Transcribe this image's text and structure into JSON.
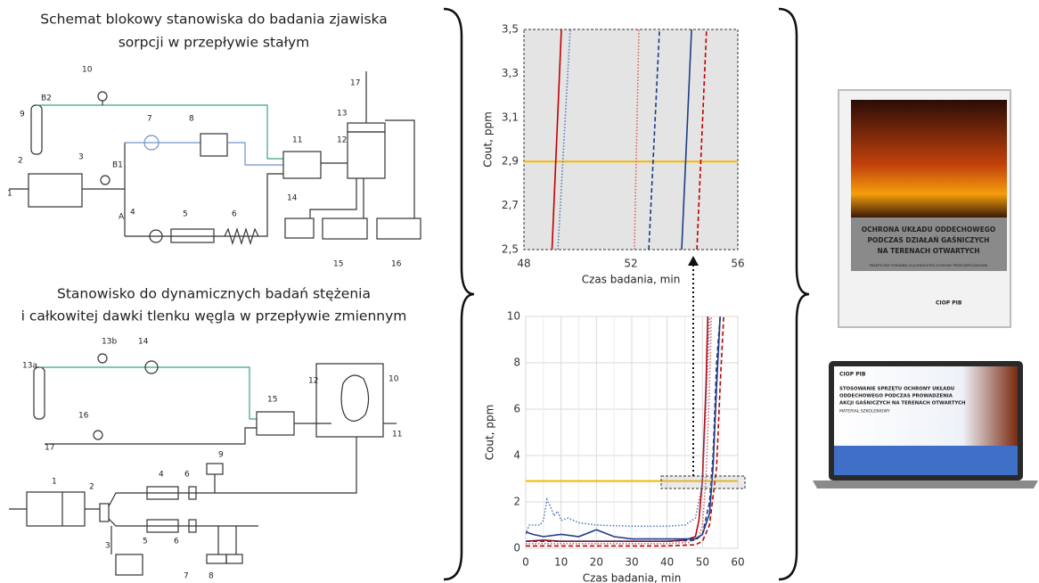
{
  "diagram1": {
    "title": [
      "Schemat blokowy stanowiska do badania zjawiska",
      "sorpcji w przepływie stałym"
    ],
    "labels": [
      "10",
      "9",
      "B2",
      "7",
      "8",
      "17",
      "13",
      "11",
      "12",
      "2",
      "3",
      "B1",
      "1",
      "A",
      "4",
      "5",
      "6",
      "14",
      "15",
      "16"
    ]
  },
  "diagram2": {
    "title": [
      "Stanowisko do dynamicznych badań stężenia",
      "i całkowitej dawki tlenku węgla w przepływie zmiennym"
    ],
    "labels": [
      "13b",
      "14",
      "13a",
      "12",
      "10",
      "15",
      "16",
      "17",
      "9",
      "1",
      "2",
      "4",
      "6",
      "11",
      "3",
      "5",
      "6",
      "7",
      "8"
    ]
  },
  "chart_data": [
    {
      "type": "line",
      "x_label": "Czas badania, min",
      "y_label": "Cout, ppm",
      "xlim": [
        48,
        56
      ],
      "xticks": [
        48,
        52,
        56
      ],
      "ylim": [
        2.5,
        3.5
      ],
      "yticks": [
        {
          "value": 2.5,
          "label": "2,5"
        },
        {
          "value": 2.7,
          "label": "2,7"
        },
        {
          "value": 2.9,
          "label": "2,9"
        },
        {
          "value": 3.1,
          "label": "3,1"
        },
        {
          "value": 3.3,
          "label": "3,3"
        },
        {
          "value": 3.5,
          "label": "3,5"
        }
      ],
      "grid": false,
      "background": "#e4e4e4",
      "reference_line": {
        "value": 2.9,
        "color": "#f5b800"
      },
      "series": [
        {
          "color": "#c00000",
          "dash": "solid",
          "x": [
            49.05,
            49.4
          ],
          "values": [
            2.5,
            3.5
          ]
        },
        {
          "color": "#5a7ab8",
          "dash": "dotted",
          "x": [
            49.27,
            49.73
          ],
          "values": [
            2.5,
            3.5
          ]
        },
        {
          "color": "#e06060",
          "dash": "dotted",
          "x": [
            52.13,
            52.3
          ],
          "values": [
            2.5,
            3.5
          ]
        },
        {
          "color": "#1f3c88",
          "dash": "dashed",
          "x": [
            52.67,
            53.07
          ],
          "values": [
            2.5,
            3.5
          ]
        },
        {
          "color": "#1f3c88",
          "dash": "solid",
          "x": [
            53.9,
            54.27
          ],
          "values": [
            2.5,
            3.5
          ]
        },
        {
          "color": "#c00000",
          "dash": "dashed",
          "x": [
            54.47,
            54.83
          ],
          "values": [
            2.5,
            3.5
          ]
        }
      ]
    },
    {
      "type": "line",
      "x_label": "Czas badania, min",
      "y_label": "Cout, ppm",
      "xlim": [
        0,
        60
      ],
      "xticks": [
        0,
        10,
        20,
        30,
        40,
        50,
        60
      ],
      "ylim": [
        0,
        10
      ],
      "yticks": [
        0,
        2,
        4,
        6,
        8,
        10
      ],
      "grid": true,
      "background": "#ffffff",
      "reference_line": {
        "value": 2.9,
        "color": "#f5b800"
      },
      "series": [
        {
          "color": "#c00000",
          "dash": "solid",
          "x": [
            0,
            5,
            10,
            20,
            30,
            40,
            45,
            48,
            49,
            50,
            51,
            51.5
          ],
          "values": [
            0.3,
            0.35,
            0.3,
            0.3,
            0.3,
            0.3,
            0.35,
            0.5,
            1.2,
            3,
            7,
            10
          ]
        },
        {
          "color": "#5a7ab8",
          "dash": "dotted",
          "x": [
            0,
            1,
            4,
            5,
            6,
            7,
            8,
            9,
            10,
            12,
            15,
            20,
            30,
            40,
            45,
            48,
            50,
            51,
            52
          ],
          "values": [
            0.6,
            1,
            1,
            1.2,
            2.1,
            1.8,
            1.4,
            1.6,
            1.2,
            1.3,
            1.1,
            1,
            0.95,
            0.95,
            1,
            1.3,
            2.8,
            6,
            10
          ]
        },
        {
          "color": "#e06060",
          "dash": "dotted",
          "x": [
            0,
            10,
            20,
            30,
            40,
            46,
            49,
            50,
            51,
            52,
            52.5
          ],
          "values": [
            0.2,
            0.2,
            0.2,
            0.2,
            0.2,
            0.25,
            0.5,
            1,
            3,
            7,
            10
          ]
        },
        {
          "color": "#1f3c88",
          "dash": "dashed",
          "x": [
            0,
            10,
            20,
            30,
            40,
            48,
            50,
            52,
            53,
            54,
            55
          ],
          "values": [
            0.3,
            0.3,
            0.3,
            0.3,
            0.3,
            0.35,
            0.6,
            2,
            4,
            8,
            10
          ]
        },
        {
          "color": "#1f3c88",
          "dash": "solid",
          "x": [
            0,
            2,
            5,
            10,
            15,
            20,
            25,
            30,
            35,
            40,
            45,
            48,
            50,
            52,
            53,
            54,
            55
          ],
          "values": [
            0.7,
            0.6,
            0.5,
            0.6,
            0.5,
            0.8,
            0.5,
            0.4,
            0.4,
            0.4,
            0.4,
            0.4,
            0.6,
            1.5,
            3.5,
            7,
            10
          ]
        },
        {
          "color": "#c00000",
          "dash": "dashed",
          "x": [
            0,
            10,
            20,
            30,
            40,
            48,
            50,
            52,
            54,
            55,
            56
          ],
          "values": [
            0.1,
            0.1,
            0.1,
            0.1,
            0.1,
            0.15,
            0.3,
            1,
            3.5,
            7,
            10
          ]
        }
      ]
    }
  ],
  "book": {
    "title": [
      "OCHRONA UKŁADU ODDECHOWEGO",
      "PODCZAS DZIAŁAŃ GAŚNICZYCH",
      "NA TERENACH OTWARTYCH"
    ],
    "subtitle": "PRAKTYCZNY PORADNIK DLA JEDNOSTEK OCHRONY PRZECIWPOŻAROWEJ",
    "logo": "CIOP PIB"
  },
  "laptop": {
    "logo": "CIOP PIB",
    "title": [
      "STOSOWANIE SPRZĘTU OCHRONY UKŁADU",
      "ODDECHOWEGO PODCZAS PROWADZENIA",
      "AKCJI GAŚNICZYCH NA TERENACH OTWARTYCH"
    ],
    "subtitle": "MATERIAŁ SZKOLENIOWY"
  }
}
